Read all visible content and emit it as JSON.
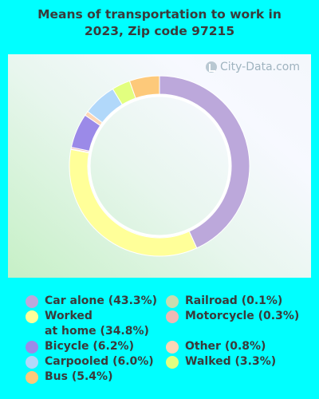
{
  "chart_data": {
    "type": "pie",
    "title_lines": [
      "Means of transportation to work in",
      "2023, Zip code 97215"
    ],
    "slices": [
      {
        "name": "Car alone",
        "value": 43.3,
        "label": "Car alone (43.3%)",
        "color": "#bca8db"
      },
      {
        "name": "Worked at home",
        "value": 34.8,
        "label": "Worked\nat home (34.8%)",
        "color": "#ffff99"
      },
      {
        "name": "Railroad",
        "value": 0.1,
        "label": "Railroad (0.1%)",
        "color": "#c8dcaf"
      },
      {
        "name": "Motorcycle",
        "value": 0.3,
        "label": "Motorcycle (0.3%)",
        "color": "#f0b9b4"
      },
      {
        "name": "Bicycle",
        "value": 6.2,
        "label": "Bicycle (6.2%)",
        "color": "#9b8ae8"
      },
      {
        "name": "Other",
        "value": 0.8,
        "label": "Other (0.8%)",
        "color": "#fdd6b5"
      },
      {
        "name": "Carpooled",
        "value": 6.0,
        "label": "Carpooled (6.0%)",
        "color": "#b1d8fa"
      },
      {
        "name": "Walked",
        "value": 3.3,
        "label": "Walked (3.3%)",
        "color": "#e2ff7f"
      },
      {
        "name": "Bus",
        "value": 5.4,
        "label": "Bus (5.4%)",
        "color": "#fdc97a"
      }
    ],
    "legend_placement": "bottom",
    "start_angle_deg": 0,
    "direction": "clockwise"
  },
  "watermark": "City-Data.com",
  "legend": {
    "left_column": [
      "Car alone (43.3%)",
      "Worked\nat home (34.8%)",
      "Bicycle (6.2%)",
      "Carpooled (6.0%)",
      "Bus (5.4%)"
    ],
    "right_column": [
      "Railroad (0.1%)",
      "Motorcycle (0.3%)",
      "Other (0.8%)",
      "Walked (3.3%)"
    ]
  }
}
